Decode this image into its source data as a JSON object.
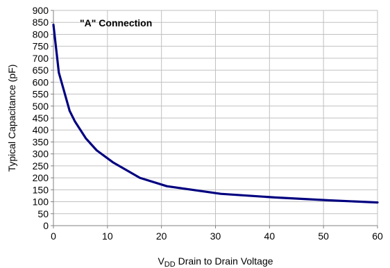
{
  "colors": {
    "line": "#000080",
    "grid": "#c0c0c0",
    "axis": "#808080",
    "text": "#000000"
  },
  "chart_data": {
    "type": "line",
    "annotation": "\"A\" Connection",
    "xlabel": {
      "prefix": "V",
      "subscript": "DD",
      "suffix": " Drain to Drain Voltage"
    },
    "ylabel": "Typical Capacitance (pF)",
    "xlim": [
      0,
      60
    ],
    "ylim": [
      0,
      900
    ],
    "x_ticks": [
      0,
      10,
      20,
      30,
      40,
      50,
      60
    ],
    "y_ticks": [
      0,
      50,
      100,
      150,
      200,
      250,
      300,
      350,
      400,
      450,
      500,
      550,
      600,
      650,
      700,
      750,
      800,
      850,
      900
    ],
    "grid": true,
    "series": [
      {
        "x": [
          0,
          0.3,
          0.6,
          1,
          2,
          3,
          4,
          6,
          8,
          11,
          16,
          21,
          31,
          41,
          51,
          60
        ],
        "y": [
          840,
          780,
          720,
          640,
          560,
          480,
          435,
          365,
          315,
          265,
          200,
          165,
          133,
          118,
          106,
          97
        ]
      }
    ]
  }
}
